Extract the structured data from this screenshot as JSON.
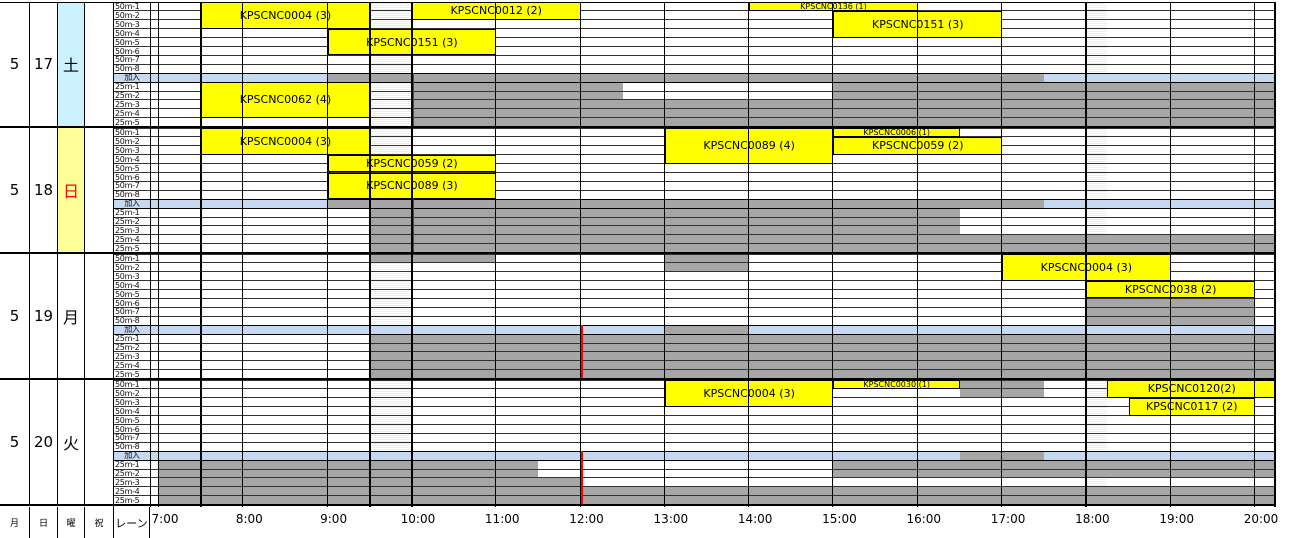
{
  "timeline": {
    "start_hour": 7,
    "end_hour": 20,
    "tick_labels": [
      "7:00",
      "8:00",
      "9:00",
      "10:00",
      "11:00",
      "12:00",
      "13:00",
      "14:00",
      "15:00",
      "16:00",
      "17:00",
      "18:00",
      "19:00",
      "20:00"
    ]
  },
  "footer": {
    "month_label": "月",
    "day_label": "日",
    "weekday_label": "曜",
    "holiday_label": "祝",
    "lane_label": "レーン"
  },
  "colors": {
    "booking": "#ffff00",
    "busy": "#a6a6a6",
    "header_lane": "#c5d9f1",
    "saturday": "#ccf2ff",
    "sunday": "#ffff99",
    "now_line": "#ff0000"
  },
  "days": [
    {
      "month": "5",
      "day": "17",
      "weekday": "土",
      "weekday_color": "#000000",
      "weekday_bg": "#ccf2ff",
      "lanes": [
        "50m-1",
        "50m-2",
        "50m-3",
        "50m-4",
        "50m-5",
        "50m-6",
        "50m-7",
        "50m-8",
        "加入",
        "25m-1",
        "25m-2",
        "25m-3",
        "25m-4",
        "25m-5"
      ],
      "bookings": [
        {
          "label": "KPSCNC0004 (3)",
          "start": 7.5,
          "end": 9.5,
          "lane_from": 0,
          "lane_to": 2
        },
        {
          "label": "KPSCNC0012 (2)",
          "start": 10.0,
          "end": 12.0,
          "lane_from": 0,
          "lane_to": 1
        },
        {
          "label": "KPSCNC0136 (1)",
          "start": 14.0,
          "end": 16.0,
          "lane_from": 0,
          "lane_to": 0,
          "small": true
        },
        {
          "label": "KPSCNC0151 (3)",
          "start": 15.0,
          "end": 17.0,
          "lane_from": 1,
          "lane_to": 3
        },
        {
          "label": "KPSCNC0151 (3)",
          "start": 9.0,
          "end": 11.0,
          "lane_from": 3,
          "lane_to": 5
        },
        {
          "label": "KPSCNC0062 (4)",
          "start": 7.5,
          "end": 9.5,
          "lane_from": 9,
          "lane_to": 12
        }
      ],
      "busy": [
        {
          "start": 9.0,
          "end": 17.5,
          "lane_from": 8,
          "lane_to": 8
        },
        {
          "start": 10.0,
          "end": 12.5,
          "lane_from": 9,
          "lane_to": 10
        },
        {
          "start": 10.0,
          "end": 20.25,
          "lane_from": 11,
          "lane_to": 13
        },
        {
          "start": 15.0,
          "end": 20.25,
          "lane_from": 9,
          "lane_to": 10
        }
      ],
      "now_line": 10.0
    },
    {
      "month": "5",
      "day": "18",
      "weekday": "日",
      "weekday_color": "#ff0000",
      "weekday_bg": "#ffff99",
      "lanes": [
        "50m-1",
        "50m-2",
        "50m-3",
        "50m-4",
        "50m-5",
        "50m-6",
        "50m-7",
        "50m-8",
        "加入",
        "25m-1",
        "25m-2",
        "25m-3",
        "25m-4",
        "25m-5"
      ],
      "bookings": [
        {
          "label": "KPSCNC0004 (3)",
          "start": 7.5,
          "end": 9.5,
          "lane_from": 0,
          "lane_to": 2
        },
        {
          "label": "KPSCNC0089 (4)",
          "start": 13.0,
          "end": 15.0,
          "lane_from": 0,
          "lane_to": 3
        },
        {
          "label": "KPSCNC0006 (1)",
          "start": 15.0,
          "end": 16.5,
          "lane_from": 0,
          "lane_to": 0,
          "small": true
        },
        {
          "label": "KPSCNC0059 (2)",
          "start": 15.0,
          "end": 17.0,
          "lane_from": 1,
          "lane_to": 2
        },
        {
          "label": "KPSCNC0059 (2)",
          "start": 9.0,
          "end": 11.0,
          "lane_from": 3,
          "lane_to": 4
        },
        {
          "label": "KPSCNC0089 (3)",
          "start": 9.0,
          "end": 11.0,
          "lane_from": 5,
          "lane_to": 7
        }
      ],
      "busy": [
        {
          "start": 9.0,
          "end": 17.5,
          "lane_from": 8,
          "lane_to": 8
        },
        {
          "start": 9.5,
          "end": 16.5,
          "lane_from": 9,
          "lane_to": 11
        },
        {
          "start": 9.5,
          "end": 20.25,
          "lane_from": 12,
          "lane_to": 13
        }
      ],
      "now_line": 10.0
    },
    {
      "month": "5",
      "day": "19",
      "weekday": "月",
      "weekday_color": "#000000",
      "weekday_bg": "#ffffff",
      "lanes": [
        "50m-1",
        "50m-2",
        "50m-3",
        "50m-4",
        "50m-5",
        "50m-6",
        "50m-7",
        "50m-8",
        "加入",
        "25m-1",
        "25m-2",
        "25m-3",
        "25m-4",
        "25m-5"
      ],
      "bookings": [
        {
          "label": "KPSCNC0004 (3)",
          "start": 17.0,
          "end": 19.0,
          "lane_from": 0,
          "lane_to": 2
        },
        {
          "label": "KPSCNC0038 (2)",
          "start": 18.0,
          "end": 20.0,
          "lane_from": 3,
          "lane_to": 4
        }
      ],
      "busy": [
        {
          "start": 9.5,
          "end": 11.0,
          "lane_from": 0,
          "lane_to": 0
        },
        {
          "start": 13.0,
          "end": 14.0,
          "lane_from": 0,
          "lane_to": 1
        },
        {
          "start": 18.0,
          "end": 20.0,
          "lane_from": 5,
          "lane_to": 7
        },
        {
          "start": 13.0,
          "end": 14.0,
          "lane_from": 8,
          "lane_to": 8
        },
        {
          "start": 9.5,
          "end": 20.25,
          "lane_from": 9,
          "lane_to": 13
        }
      ],
      "now_line": 12.0
    },
    {
      "month": "5",
      "day": "20",
      "weekday": "火",
      "weekday_color": "#000000",
      "weekday_bg": "#ffffff",
      "lanes": [
        "50m-1",
        "50m-2",
        "50m-3",
        "50m-4",
        "50m-5",
        "50m-6",
        "50m-7",
        "50m-8",
        "加入",
        "25m-1",
        "25m-2",
        "25m-3",
        "25m-4",
        "25m-5"
      ],
      "bookings": [
        {
          "label": "KPSCNC0004 (3)",
          "start": 13.0,
          "end": 15.0,
          "lane_from": 0,
          "lane_to": 2
        },
        {
          "label": "KPSCNC0030 (1)",
          "start": 15.0,
          "end": 16.5,
          "lane_from": 0,
          "lane_to": 0,
          "small": true
        },
        {
          "label": "KPSCNC0120(2)",
          "start": 18.25,
          "end": 20.25,
          "lane_from": 0,
          "lane_to": 1
        },
        {
          "label": "KPSCNC0117 (2)",
          "start": 18.5,
          "end": 20.0,
          "lane_from": 2,
          "lane_to": 3
        }
      ],
      "busy": [
        {
          "start": 16.5,
          "end": 17.5,
          "lane_from": 0,
          "lane_to": 1
        },
        {
          "start": 16.5,
          "end": 17.5,
          "lane_from": 8,
          "lane_to": 8
        },
        {
          "start": 7.0,
          "end": 11.5,
          "lane_from": 9,
          "lane_to": 10
        },
        {
          "start": 15.0,
          "end": 20.25,
          "lane_from": 9,
          "lane_to": 10
        },
        {
          "start": 7.0,
          "end": 12.0,
          "lane_from": 11,
          "lane_to": 13
        },
        {
          "start": 12.0,
          "end": 20.25,
          "lane_from": 12,
          "lane_to": 13
        }
      ],
      "now_line": 12.0
    }
  ]
}
